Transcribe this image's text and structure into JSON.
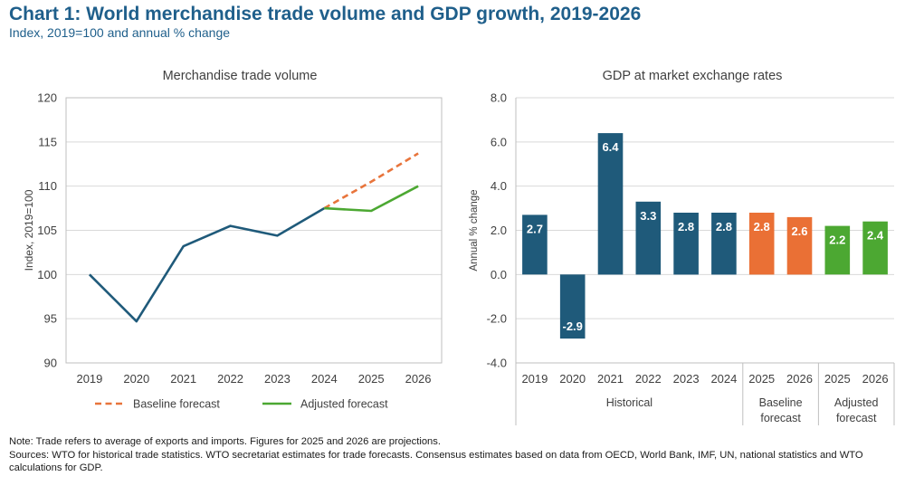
{
  "header": {
    "title": "Chart 1: World merchandise trade volume and GDP growth, 2019-2026",
    "subtitle": "Index, 2019=100 and annual % change"
  },
  "chart_data": [
    {
      "type": "line",
      "title": "Merchandise trade volume",
      "ylabel": "Index, 2019=100",
      "xlabel": "",
      "x": [
        "2019",
        "2020",
        "2021",
        "2022",
        "2023",
        "2024",
        "2025",
        "2026"
      ],
      "ylim": [
        90,
        120
      ],
      "yticks": [
        90,
        95,
        100,
        105,
        110,
        115,
        120
      ],
      "grid": true,
      "legend_position": "bottom",
      "colors": {
        "actual": "#1f5a7a",
        "baseline": "#e8743b",
        "adjusted": "#4ca832"
      },
      "series": [
        {
          "role": "actual",
          "x": [
            "2019",
            "2020",
            "2021",
            "2022",
            "2023",
            "2024"
          ],
          "values": [
            100.0,
            94.7,
            103.2,
            105.5,
            104.4,
            107.5
          ]
        },
        {
          "role": "baseline",
          "name": "Baseline forecast",
          "style": "dashed",
          "x": [
            "2024",
            "2025",
            "2026"
          ],
          "values": [
            107.5,
            110.5,
            113.7
          ]
        },
        {
          "role": "adjusted",
          "name": "Adjusted forecast",
          "style": "solid",
          "x": [
            "2024",
            "2025",
            "2026"
          ],
          "values": [
            107.5,
            107.2,
            110.0
          ]
        }
      ]
    },
    {
      "type": "bar",
      "title": "GDP at market exchange rates",
      "ylabel": "Annual % change",
      "xlabel": "",
      "categories": [
        "2019",
        "2020",
        "2021",
        "2022",
        "2023",
        "2024",
        "2025",
        "2026",
        "2025",
        "2026"
      ],
      "values": [
        2.7,
        -2.9,
        6.4,
        3.3,
        2.8,
        2.8,
        2.8,
        2.6,
        2.2,
        2.4
      ],
      "data_labels": [
        "2.7",
        "-2.9",
        "6.4",
        "3.3",
        "2.8",
        "2.8",
        "2.8",
        "2.6",
        "2.2",
        "2.4"
      ],
      "bar_groups": [
        "Historical",
        "Historical",
        "Historical",
        "Historical",
        "Historical",
        "Historical",
        "Baseline",
        "Baseline",
        "Adjusted",
        "Adjusted"
      ],
      "group_colors": {
        "Historical": "#1f5a7a",
        "Baseline": "#ea7035",
        "Adjusted": "#4ca832"
      },
      "group_labels": [
        {
          "text": [
            "Historical"
          ],
          "span": [
            0,
            5
          ]
        },
        {
          "text": [
            "Baseline",
            "forecast"
          ],
          "span": [
            6,
            7
          ]
        },
        {
          "text": [
            "Adjusted",
            "forecast"
          ],
          "span": [
            8,
            9
          ]
        }
      ],
      "ylim": [
        -4.0,
        8.0
      ],
      "yticks": [
        "-4.0",
        "-2.0",
        "0.0",
        "2.0",
        "4.0",
        "6.0",
        "8.0"
      ],
      "grid": true
    }
  ],
  "notes": {
    "note": "Note: Trade refers to average of exports and imports. Figures for 2025 and 2026 are projections.",
    "sources": "Sources: WTO for historical trade statistics. WTO secretariat estimates for trade forecasts.  Consensus estimates based on data from OECD, World Bank, IMF, UN, national statistics and WTO calculations for GDP."
  }
}
